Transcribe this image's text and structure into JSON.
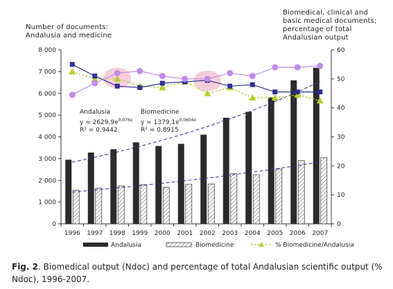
{
  "chart_data": {
    "type": "bar",
    "categories": [
      "1996",
      "1997",
      "1998",
      "1999",
      "2000",
      "2001",
      "2002",
      "2003",
      "2004",
      "2005",
      "2006",
      "2007"
    ],
    "left_axis": {
      "title_lines": [
        "Number of documents:",
        "Andalusia and medicine"
      ],
      "ylim": [
        0,
        8000
      ],
      "ticks": [
        "0",
        "1 000",
        "2 000",
        "3 000",
        "4 000",
        "5 000",
        "6 000",
        "7 000",
        "8 000"
      ],
      "tick_values": [
        0,
        1000,
        2000,
        3000,
        4000,
        5000,
        6000,
        7000,
        8000
      ]
    },
    "right_axis": {
      "title_lines": [
        "Biomedical, clinical and",
        "basic medical documents;",
        "percentage of total",
        "Andalusian output"
      ],
      "ylim": [
        0,
        60
      ],
      "ticks": [
        "0",
        "10",
        "20",
        "30",
        "40",
        "50",
        "60"
      ],
      "tick_values": [
        0,
        10,
        20,
        30,
        40,
        50,
        60
      ]
    },
    "series": [
      {
        "name": "Andalusia",
        "kind": "bar",
        "axis": "left",
        "color": "#2b2b2b",
        "values": [
          2950,
          3280,
          3430,
          3750,
          3580,
          3680,
          4100,
          4880,
          5150,
          5820,
          6600,
          7180
        ]
      },
      {
        "name": "Biomedicine",
        "kind": "bar-hatched",
        "axis": "left",
        "color": "#ffffff",
        "values": [
          1550,
          1640,
          1750,
          1800,
          1680,
          1820,
          1830,
          2310,
          2260,
          2520,
          2910,
          3050
        ]
      },
      {
        "name": "% Biomedicine/Andalusia",
        "kind": "line",
        "axis": "right",
        "color": "#b5cc2e",
        "values": [
          52.5,
          50,
          50,
          47.5,
          47,
          49,
          45,
          47,
          43.5,
          43.5,
          44.5,
          42.5
        ]
      },
      {
        "kind": "line",
        "axis": "right",
        "color": "#2e3192",
        "marker": "square",
        "values": [
          55,
          51,
          47.5,
          47,
          48.5,
          49,
          49.5,
          47.5,
          48,
          45.5,
          45.5,
          45.5
        ]
      },
      {
        "kind": "line",
        "axis": "right",
        "color": "#c08ce8",
        "marker": "circle",
        "values": [
          44.5,
          48.5,
          52,
          52.7,
          51,
          50,
          50,
          52,
          51,
          54,
          54,
          54.5
        ]
      }
    ],
    "trendlines": [
      {
        "of": "Andalusia",
        "base": 2629.9,
        "rate": 0.076,
        "color": "#2e3192"
      },
      {
        "of": "Biomedicine",
        "base": 1379.1,
        "rate": 0.0604,
        "color": "#2e3192"
      }
    ],
    "highlights": [
      {
        "category": "1998",
        "axis_value": 50.3,
        "color": "#f5c6d3"
      },
      {
        "category": "2002",
        "axis_value": 49.3,
        "color": "#f5c6d3"
      }
    ],
    "annotations": {
      "andalusia": {
        "label": "Andalusia",
        "formula": "y = 2629,9e",
        "exponent": "0,076x",
        "r2": "R² = 0,9442"
      },
      "biomedicine": {
        "label": "Biomedicine",
        "formula": "y = 1379,1e",
        "exponent": "0,0604x",
        "r2": "R² = 0.8915"
      }
    },
    "legend": [
      {
        "label": "Andalusia",
        "swatch": "solid"
      },
      {
        "label": "Biomedicine",
        "swatch": "hatched"
      },
      {
        "label": "% Biomedicine/Andalusia",
        "swatch": "line"
      }
    ],
    "legend_position": "bottom"
  },
  "caption": {
    "label": "Fig. 2",
    "text": ". Biomedical output (Ndoc) and percentage of total Andalusian scientific output (% Ndoc), 1996-2007."
  }
}
